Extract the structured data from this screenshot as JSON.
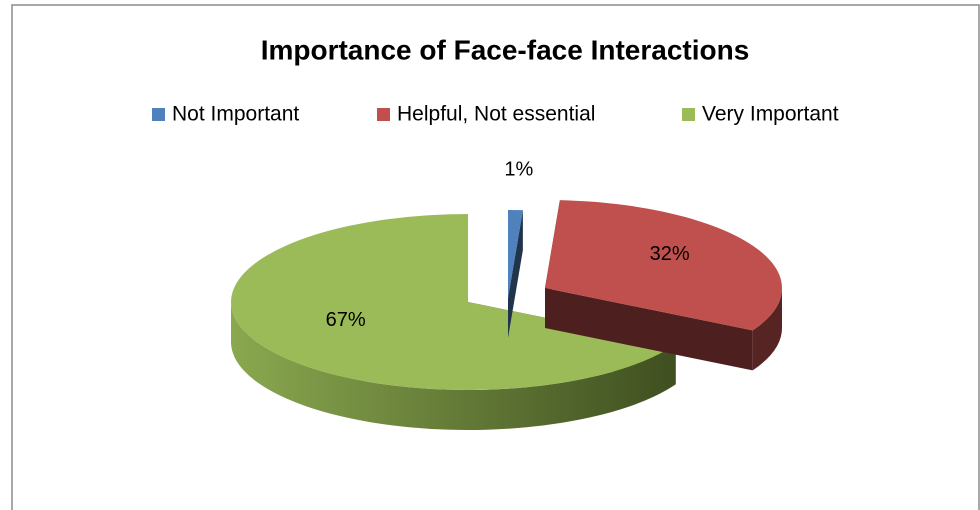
{
  "chart_data": {
    "type": "pie",
    "title": "Importance of Face-face Interactions",
    "categories": [
      "Not Important",
      "Helpful, Not essential",
      "Very Important"
    ],
    "values": [
      1,
      32,
      67
    ],
    "value_labels": [
      "1%",
      "32%",
      "67%"
    ],
    "colors": [
      "#4f81bd",
      "#c0504d",
      "#9bbb59"
    ],
    "legend": "top"
  }
}
